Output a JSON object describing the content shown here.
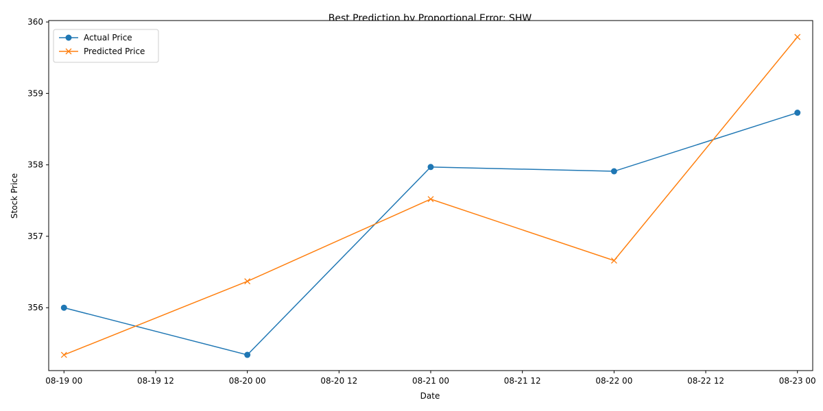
{
  "chart_data": {
    "type": "line",
    "title": "Best Prediction by Proportional Error: SHW",
    "xlabel": "Date",
    "ylabel": "Stock Price",
    "x": [
      "08-19 00",
      "08-20 00",
      "08-21 00",
      "08-22 00",
      "08-23 00"
    ],
    "x_ticks": [
      "08-19 00",
      "08-19 12",
      "08-20 00",
      "08-20 12",
      "08-21 00",
      "08-21 12",
      "08-22 00",
      "08-22 12",
      "08-23 00"
    ],
    "xlim": [
      "08-18 22",
      "08-23 02"
    ],
    "y_ticks": [
      356,
      357,
      358,
      359,
      360
    ],
    "ylim": [
      355.12,
      360.02
    ],
    "grid": false,
    "legend_position": "upper-left",
    "series": [
      {
        "name": "Actual Price",
        "color": "#1f77b4",
        "marker": "circle",
        "values": [
          356.0,
          355.34,
          357.97,
          357.91,
          358.73
        ]
      },
      {
        "name": "Predicted Price",
        "color": "#ff7f0e",
        "marker": "x",
        "values": [
          355.34,
          356.37,
          357.52,
          356.66,
          359.79
        ]
      }
    ]
  }
}
